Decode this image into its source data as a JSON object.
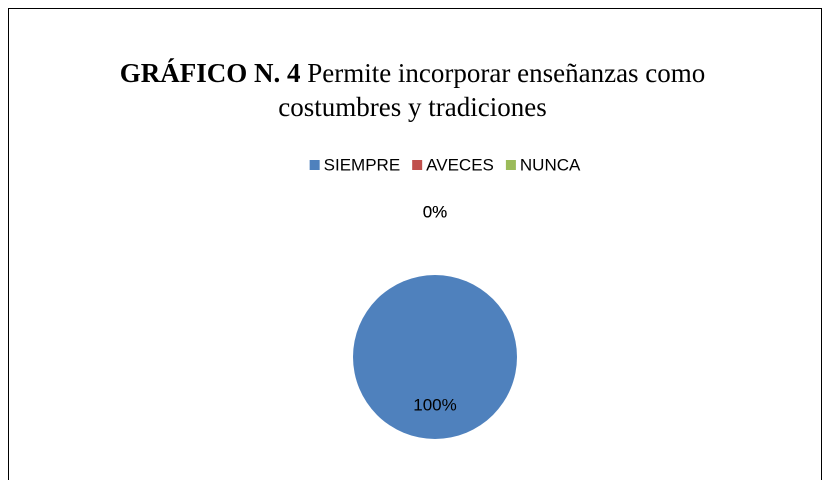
{
  "chart_data": {
    "type": "pie",
    "title": {
      "label": "GRÁFICO N. 4",
      "text": "Permite incorporar enseñanzas como costumbres y tradiciones"
    },
    "categories": [
      "SIEMPRE",
      "AVECES",
      "NUNCA"
    ],
    "values": [
      100,
      0,
      0
    ],
    "value_labels": [
      "100%",
      "0%",
      "0%"
    ],
    "colors": [
      "#4f81bd",
      "#c0504d",
      "#9bbb59"
    ],
    "legend": "top"
  }
}
